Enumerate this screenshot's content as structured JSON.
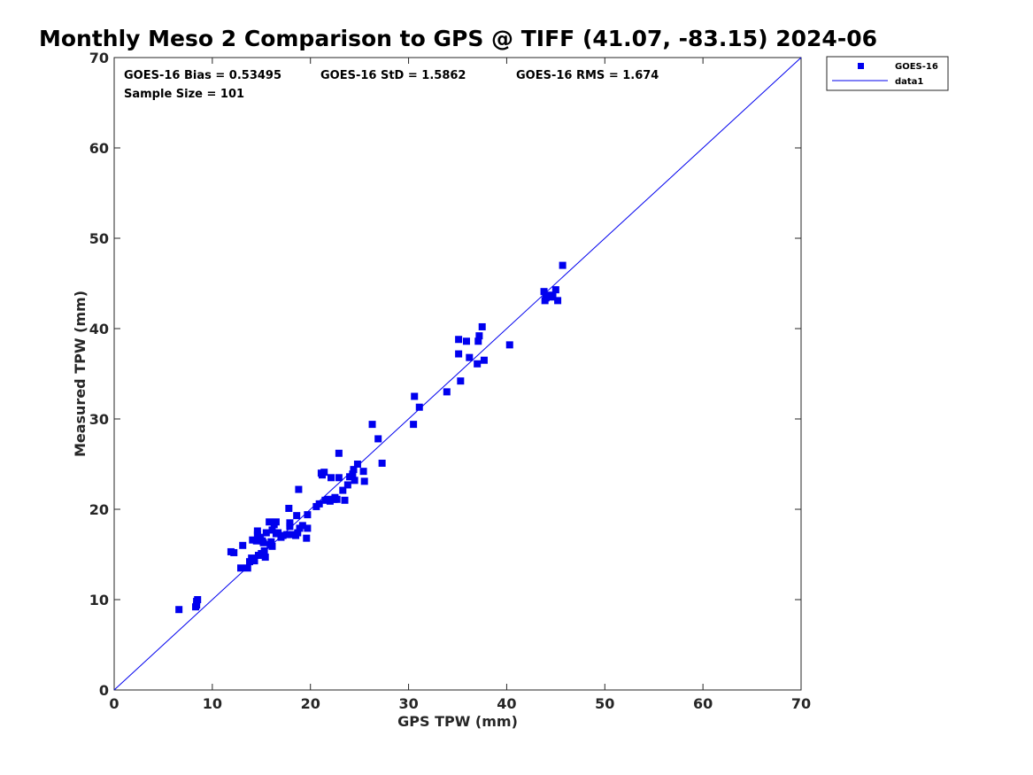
{
  "chart_data": {
    "type": "scatter",
    "title": "Monthly Meso 2 Comparison to GPS @ TIFF (41.07, -83.15) 2024-06",
    "xlabel": "GPS TPW (mm)",
    "ylabel": "Measured TPW (mm)",
    "xlim": [
      0,
      70
    ],
    "ylim": [
      0,
      70
    ],
    "xticks": [
      "0",
      "10",
      "20",
      "30",
      "40",
      "50",
      "60",
      "70"
    ],
    "yticks": [
      "0",
      "10",
      "20",
      "30",
      "40",
      "50",
      "60",
      "70"
    ],
    "grid": false,
    "legend_position": "outside-top-right",
    "annotations": {
      "bias": "GOES-16 Bias = 0.53495",
      "std": "GOES-16 StD = 1.5862",
      "rms": "GOES-16 RMS = 1.674",
      "sample": "Sample Size = 101"
    },
    "series": [
      {
        "name": "GOES-16",
        "kind": "scatter",
        "marker": "square",
        "color": "#0000ee",
        "points": [
          [
            6.6,
            8.9
          ],
          [
            8.3,
            9.2
          ],
          [
            8.4,
            9.8
          ],
          [
            8.5,
            10.0
          ],
          [
            8.4,
            9.4
          ],
          [
            11.9,
            15.3
          ],
          [
            12.2,
            15.2
          ],
          [
            12.9,
            13.5
          ],
          [
            13.1,
            16.0
          ],
          [
            13.6,
            13.5
          ],
          [
            13.8,
            14.2
          ],
          [
            14.0,
            14.6
          ],
          [
            14.1,
            16.6
          ],
          [
            14.3,
            14.3
          ],
          [
            14.5,
            16.5
          ],
          [
            14.6,
            17.6
          ],
          [
            14.7,
            14.9
          ],
          [
            14.9,
            16.9
          ],
          [
            14.6,
            17.2
          ],
          [
            15.0,
            15.1
          ],
          [
            15.1,
            16.5
          ],
          [
            15.2,
            16.3
          ],
          [
            15.3,
            15.4
          ],
          [
            15.4,
            14.7
          ],
          [
            15.5,
            17.4
          ],
          [
            15.8,
            18.6
          ],
          [
            15.9,
            16.1
          ],
          [
            16.0,
            16.4
          ],
          [
            16.1,
            17.7
          ],
          [
            16.1,
            15.9
          ],
          [
            16.3,
            18.3
          ],
          [
            16.5,
            17.3
          ],
          [
            16.5,
            18.6
          ],
          [
            16.7,
            17.4
          ],
          [
            17.0,
            16.9
          ],
          [
            17.2,
            17.1
          ],
          [
            17.6,
            17.2
          ],
          [
            17.8,
            20.1
          ],
          [
            17.9,
            18.1
          ],
          [
            17.9,
            18.5
          ],
          [
            18.0,
            17.2
          ],
          [
            18.5,
            17.1
          ],
          [
            18.6,
            19.3
          ],
          [
            18.7,
            17.4
          ],
          [
            18.8,
            22.2
          ],
          [
            18.9,
            17.9
          ],
          [
            19.2,
            18.2
          ],
          [
            19.6,
            16.8
          ],
          [
            19.7,
            19.4
          ],
          [
            19.7,
            17.9
          ],
          [
            20.6,
            20.3
          ],
          [
            20.9,
            20.6
          ],
          [
            21.1,
            24.0
          ],
          [
            21.2,
            23.8
          ],
          [
            21.4,
            24.1
          ],
          [
            21.5,
            21.0
          ],
          [
            21.8,
            21.1
          ],
          [
            22.0,
            20.9
          ],
          [
            22.1,
            23.5
          ],
          [
            22.4,
            21.1
          ],
          [
            22.5,
            21.3
          ],
          [
            22.7,
            21.1
          ],
          [
            22.9,
            26.2
          ],
          [
            22.9,
            23.5
          ],
          [
            23.3,
            22.1
          ],
          [
            23.5,
            21.0
          ],
          [
            23.8,
            22.7
          ],
          [
            24.0,
            23.6
          ],
          [
            24.3,
            23.9
          ],
          [
            24.4,
            24.4
          ],
          [
            24.5,
            23.2
          ],
          [
            24.8,
            25.0
          ],
          [
            25.4,
            24.2
          ],
          [
            25.5,
            23.1
          ],
          [
            26.3,
            29.4
          ],
          [
            26.9,
            27.8
          ],
          [
            27.3,
            25.1
          ],
          [
            30.5,
            29.4
          ],
          [
            30.6,
            32.5
          ],
          [
            31.1,
            31.3
          ],
          [
            33.9,
            33.0
          ],
          [
            35.1,
            38.8
          ],
          [
            35.1,
            37.2
          ],
          [
            35.3,
            34.2
          ],
          [
            35.9,
            38.6
          ],
          [
            36.2,
            36.8
          ],
          [
            37.0,
            36.1
          ],
          [
            37.1,
            38.6
          ],
          [
            37.2,
            39.2
          ],
          [
            37.5,
            40.2
          ],
          [
            37.7,
            36.5
          ],
          [
            40.3,
            38.2
          ],
          [
            43.8,
            44.1
          ],
          [
            43.9,
            43.1
          ],
          [
            44.0,
            43.4
          ],
          [
            44.3,
            43.7
          ],
          [
            44.6,
            43.5
          ],
          [
            44.7,
            43.6
          ],
          [
            45.0,
            44.3
          ],
          [
            45.2,
            43.1
          ],
          [
            45.7,
            47.0
          ]
        ]
      },
      {
        "name": "data1",
        "kind": "line",
        "color": "#0000ee",
        "x": [
          0,
          70
        ],
        "y": [
          0,
          70
        ]
      }
    ]
  }
}
